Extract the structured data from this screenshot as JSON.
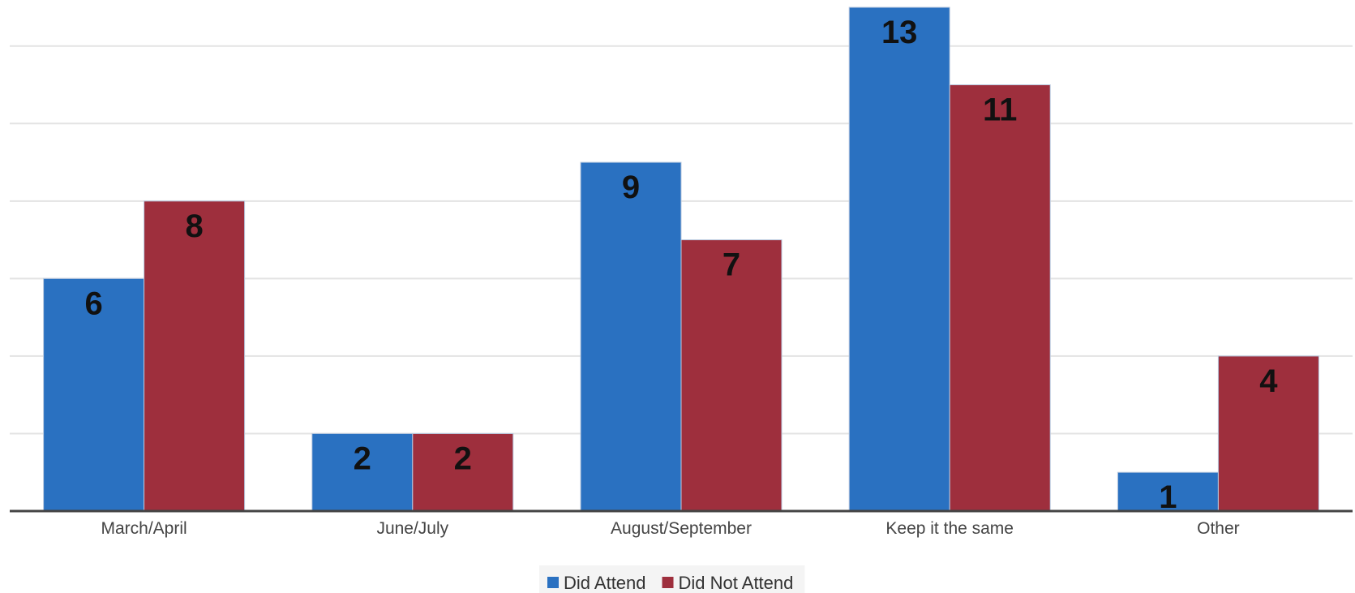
{
  "chart_data": {
    "type": "bar",
    "categories": [
      "March/April",
      "June/July",
      "August/September",
      "Keep it the same",
      "Other"
    ],
    "series": [
      {
        "name": "Did Attend",
        "values": [
          6,
          2,
          9,
          13,
          1
        ],
        "color": "#2a71c1"
      },
      {
        "name": "Did Not Attend",
        "values": [
          8,
          2,
          7,
          11,
          4
        ],
        "color": "#9e2f3d"
      }
    ],
    "ylim": [
      0,
      13
    ],
    "grid": true,
    "legend": "bottom-center",
    "data_labels": true
  }
}
